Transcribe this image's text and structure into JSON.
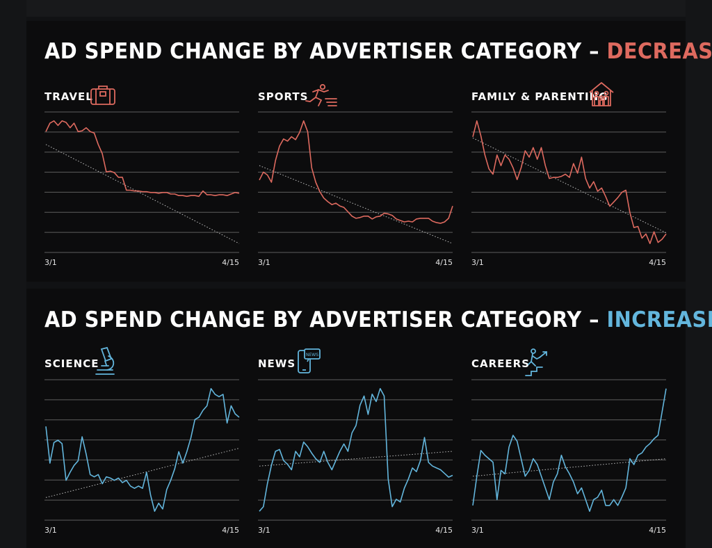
{
  "sections": [
    {
      "id": "dec",
      "title_prefix": "AD SPEND CHANGE BY ADVERTISER CATEGORY –",
      "title_highlight": "DECREASES",
      "accent": "#de6a5f"
    },
    {
      "id": "inc",
      "title_prefix": "AD SPEND CHANGE BY ADVERTISER CATEGORY –",
      "title_highlight": "INCREASES",
      "accent": "#63b6dd"
    }
  ],
  "panels": [
    {
      "title": "TRAVEL",
      "icon": "suitcase-icon"
    },
    {
      "title": "SPORTS",
      "icon": "runner-icon"
    },
    {
      "title": "FAMILY & PARENTING",
      "icon": "family-house-icon"
    },
    {
      "title": "SCIENCE",
      "icon": "microscope-icon"
    },
    {
      "title": "NEWS",
      "icon": "phone-news-icon"
    },
    {
      "title": "CAREERS",
      "icon": "career-ladder-icon"
    }
  ],
  "colors": {
    "decrease": "#de6a5f",
    "increase": "#63b6dd",
    "grid": "#5e5e5e",
    "trend": "#bfbfbf",
    "background": "#0c0c0d"
  },
  "chart_data": [
    {
      "type": "line",
      "title": "TRAVEL",
      "x_start": "3/1",
      "x_end": "4/15",
      "gridlines": 8,
      "trendline": [
        0.3,
        -1.0
      ],
      "trend_style": "dotted",
      "series": [
        {
          "values": [
            0.47,
            0.58,
            0.61,
            0.55,
            0.61,
            0.59,
            0.52,
            0.58,
            0.47,
            0.48,
            0.52,
            0.47,
            0.45,
            0.3,
            0.18,
            -0.06,
            -0.05,
            -0.07,
            -0.13,
            -0.13,
            -0.3,
            -0.3,
            -0.31,
            -0.31,
            -0.32,
            -0.32,
            -0.33,
            -0.33,
            -0.34,
            -0.33,
            -0.33,
            -0.35,
            -0.35,
            -0.37,
            -0.37,
            -0.38,
            -0.37,
            -0.37,
            -0.38,
            -0.31,
            -0.36,
            -0.36,
            -0.37,
            -0.36,
            -0.36,
            -0.37,
            -0.35,
            -0.33,
            -0.34
          ]
        }
      ]
    },
    {
      "type": "line",
      "title": "SPORTS",
      "x_start": "3/1",
      "x_end": "4/15",
      "gridlines": 8,
      "trendline": [
        0.08,
        -1.0
      ],
      "trend_style": "dotted",
      "series": [
        {
          "values": [
            -0.12,
            -0.01,
            -0.05,
            -0.15,
            0.15,
            0.35,
            0.45,
            0.42,
            0.48,
            0.44,
            0.54,
            0.7,
            0.55,
            0.05,
            -0.15,
            -0.28,
            -0.37,
            -0.42,
            -0.46,
            -0.44,
            -0.48,
            -0.5,
            -0.56,
            -0.62,
            -0.65,
            -0.64,
            -0.62,
            -0.62,
            -0.66,
            -0.63,
            -0.62,
            -0.58,
            -0.59,
            -0.61,
            -0.66,
            -0.68,
            -0.7,
            -0.69,
            -0.7,
            -0.66,
            -0.65,
            -0.65,
            -0.65,
            -0.69,
            -0.71,
            -0.72,
            -0.7,
            -0.65,
            -0.48
          ]
        }
      ]
    },
    {
      "type": "line",
      "title": "FAMILY & PARENTING",
      "x_start": "3/1",
      "x_end": "4/15",
      "gridlines": 8,
      "trendline": [
        0.34,
        -0.55
      ],
      "trend_style": "dotted",
      "series": [
        {
          "values": [
            0.35,
            0.5,
            0.36,
            0.18,
            0.05,
            0.0,
            0.18,
            0.08,
            0.18,
            0.14,
            0.06,
            -0.05,
            0.06,
            0.22,
            0.16,
            0.25,
            0.14,
            0.25,
            0.08,
            -0.04,
            -0.03,
            -0.03,
            -0.02,
            0.0,
            -0.03,
            0.1,
            0.01,
            0.16,
            -0.04,
            -0.13,
            -0.07,
            -0.16,
            -0.13,
            -0.21,
            -0.3,
            -0.26,
            -0.22,
            -0.17,
            -0.15,
            -0.36,
            -0.5,
            -0.49,
            -0.6,
            -0.56,
            -0.65,
            -0.54,
            -0.64,
            -0.61,
            -0.56
          ]
        }
      ]
    },
    {
      "type": "line",
      "title": "SCIENCE",
      "x_start": "3/1",
      "x_end": "4/15",
      "gridlines": 8,
      "trendline": [
        0.3,
        0.73
      ],
      "trend_style": "dotted",
      "series": [
        {
          "values": [
            0.92,
            0.6,
            0.78,
            0.8,
            0.77,
            0.45,
            0.52,
            0.58,
            0.62,
            0.83,
            0.68,
            0.5,
            0.48,
            0.5,
            0.42,
            0.48,
            0.47,
            0.45,
            0.47,
            0.43,
            0.45,
            0.4,
            0.38,
            0.4,
            0.38,
            0.52,
            0.32,
            0.18,
            0.25,
            0.2,
            0.37,
            0.45,
            0.55,
            0.7,
            0.6,
            0.7,
            0.82,
            0.98,
            1.0,
            1.06,
            1.1,
            1.25,
            1.2,
            1.18,
            1.2,
            0.95,
            1.1,
            1.03,
            1.0
          ]
        }
      ]
    },
    {
      "type": "line",
      "title": "NEWS",
      "x_start": "3/1",
      "x_end": "4/15",
      "gridlines": 8,
      "trendline": [
        0.54,
        0.7
      ],
      "trend_style": "dotted",
      "series": [
        {
          "values": [
            0.05,
            0.1,
            0.35,
            0.55,
            0.7,
            0.72,
            0.6,
            0.56,
            0.5,
            0.7,
            0.64,
            0.8,
            0.75,
            0.68,
            0.62,
            0.58,
            0.7,
            0.58,
            0.5,
            0.6,
            0.7,
            0.78,
            0.7,
            0.9,
            0.98,
            1.2,
            1.3,
            1.1,
            1.32,
            1.24,
            1.38,
            1.3,
            0.4,
            0.1,
            0.18,
            0.15,
            0.3,
            0.4,
            0.52,
            0.48,
            0.6,
            0.85,
            0.58,
            0.54,
            0.52,
            0.5,
            0.46,
            0.42,
            0.44
          ]
        }
      ]
    },
    {
      "type": "line",
      "title": "CAREERS",
      "x_start": "3/1",
      "x_end": "4/15",
      "gridlines": 8,
      "trendline": [
        0.3,
        0.45
      ],
      "trend_style": "dotted",
      "series": [
        {
          "values": [
            0.05,
            0.3,
            0.52,
            0.48,
            0.45,
            0.42,
            0.1,
            0.35,
            0.32,
            0.55,
            0.65,
            0.6,
            0.45,
            0.3,
            0.35,
            0.45,
            0.4,
            0.3,
            0.2,
            0.1,
            0.25,
            0.32,
            0.48,
            0.38,
            0.32,
            0.25,
            0.15,
            0.2,
            0.1,
            0.0,
            0.1,
            0.12,
            0.18,
            0.05,
            0.05,
            0.1,
            0.05,
            0.12,
            0.2,
            0.45,
            0.4,
            0.48,
            0.5,
            0.55,
            0.58,
            0.62,
            0.65,
            0.85,
            1.05
          ]
        }
      ]
    }
  ]
}
